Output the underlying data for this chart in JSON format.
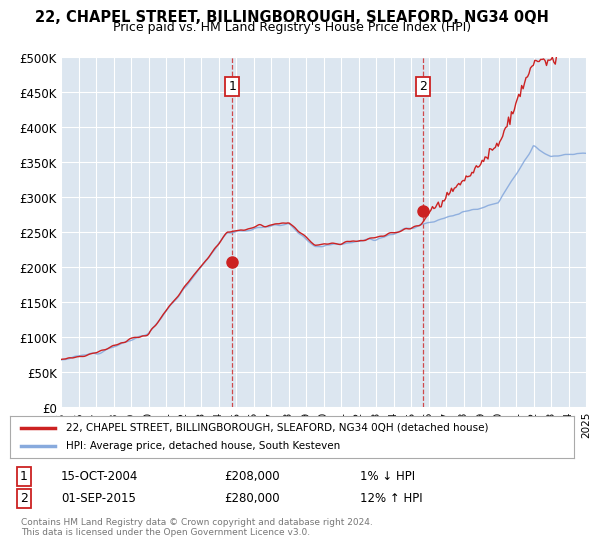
{
  "title": "22, CHAPEL STREET, BILLINGBOROUGH, SLEAFORD, NG34 0QH",
  "subtitle": "Price paid vs. HM Land Registry's House Price Index (HPI)",
  "background_color": "#ffffff",
  "plot_bg_color": "#dce6f0",
  "grid_color": "#ffffff",
  "line1_color": "#cc2222",
  "line2_color": "#88aadd",
  "marker_color": "#cc2222",
  "ylim": [
    0,
    500000
  ],
  "yticks": [
    0,
    50000,
    100000,
    150000,
    200000,
    250000,
    300000,
    350000,
    400000,
    450000,
    500000
  ],
  "ytick_labels": [
    "£0",
    "£50K",
    "£100K",
    "£150K",
    "£200K",
    "£250K",
    "£300K",
    "£350K",
    "£400K",
    "£450K",
    "£500K"
  ],
  "legend_line1": "22, CHAPEL STREET, BILLINGBOROUGH, SLEAFORD, NG34 0QH (detached house)",
  "legend_line2": "HPI: Average price, detached house, South Kesteven",
  "annotation1_date": "15-OCT-2004",
  "annotation1_price": "£208,000",
  "annotation1_hpi": "1% ↓ HPI",
  "annotation2_date": "01-SEP-2015",
  "annotation2_price": "£280,000",
  "annotation2_hpi": "12% ↑ HPI",
  "footer": "Contains HM Land Registry data © Crown copyright and database right 2024.\nThis data is licensed under the Open Government Licence v3.0.",
  "xmin": 1995,
  "xmax": 2025,
  "xticks": [
    1995,
    1996,
    1997,
    1998,
    1999,
    2000,
    2001,
    2002,
    2003,
    2004,
    2005,
    2006,
    2007,
    2008,
    2009,
    2010,
    2011,
    2012,
    2013,
    2014,
    2015,
    2016,
    2017,
    2018,
    2019,
    2020,
    2021,
    2022,
    2023,
    2024,
    2025
  ],
  "sale1_x": 2004.79,
  "sale1_y": 208000,
  "sale2_x": 2015.67,
  "sale2_y": 280000
}
